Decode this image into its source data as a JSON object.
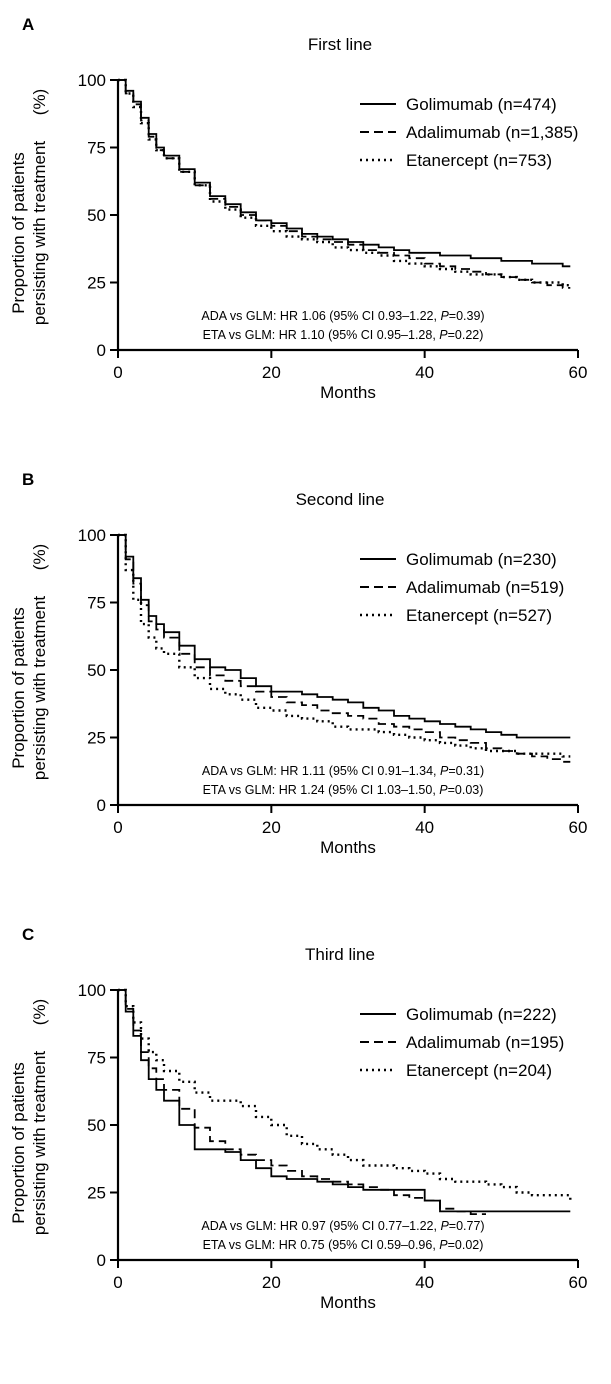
{
  "chart_data": [
    {
      "type": "line",
      "panel_letter": "A",
      "title": "First line",
      "xlabel": "Months",
      "ylabel_line1": "Proportion of patients",
      "ylabel_line2": "persisting with treatment",
      "ylabel_unit": "(%)",
      "xlim": [
        0,
        60
      ],
      "ylim": [
        0,
        100
      ],
      "xticks": [
        0,
        20,
        40,
        60
      ],
      "yticks": [
        0,
        25,
        50,
        75,
        100
      ],
      "grid": false,
      "legend_position": "top-right",
      "annotation_1": {
        "prefix": "ADA vs GLM: HR 1.06 (95% CI 0.93–1.22, ",
        "p_label": "P",
        "suffix": "=0.39)"
      },
      "annotation_2": {
        "prefix": "ETA vs GLM: HR 1.10 (95% CI 0.95–1.28, ",
        "p_label": "P",
        "suffix": "=0.22)"
      },
      "series": [
        {
          "name": "Golimumab (n=474)",
          "style": "solid",
          "x": [
            0,
            1,
            2,
            3,
            4,
            5,
            6,
            8,
            10,
            12,
            14,
            16,
            18,
            20,
            22,
            24,
            26,
            28,
            30,
            32,
            34,
            36,
            38,
            40,
            42,
            44,
            46,
            48,
            50,
            52,
            54,
            56,
            58,
            59
          ],
          "y": [
            100,
            96,
            92,
            86,
            80,
            75,
            72,
            67,
            62,
            57,
            54,
            51,
            48,
            47,
            45,
            43,
            42,
            41,
            40,
            39,
            38,
            37,
            36,
            36,
            35,
            35,
            34,
            34,
            33,
            33,
            32,
            32,
            31,
            31
          ]
        },
        {
          "name": "Adalimumab (n=1,385)",
          "style": "dashed",
          "x": [
            0,
            1,
            2,
            3,
            4,
            5,
            6,
            8,
            10,
            12,
            14,
            16,
            18,
            20,
            22,
            24,
            26,
            28,
            30,
            32,
            34,
            36,
            38,
            40,
            42,
            44,
            46,
            48,
            50,
            52,
            54,
            56,
            58,
            59
          ],
          "y": [
            100,
            95,
            91,
            85,
            79,
            74,
            71,
            66,
            61,
            56,
            53,
            50,
            48,
            46,
            44,
            42,
            41,
            40,
            39,
            37,
            36,
            35,
            34,
            32,
            31,
            30,
            29,
            28,
            27,
            26,
            25,
            24,
            23,
            23
          ]
        },
        {
          "name": "Etanercept (n=753)",
          "style": "dotted",
          "x": [
            0,
            1,
            2,
            3,
            4,
            5,
            6,
            8,
            10,
            12,
            14,
            16,
            18,
            20,
            22,
            24,
            26,
            28,
            30,
            32,
            34,
            36,
            38,
            40,
            42,
            44,
            46,
            48,
            50,
            52,
            54,
            56,
            58,
            59
          ],
          "y": [
            100,
            95,
            90,
            84,
            78,
            74,
            71,
            66,
            61,
            55,
            52,
            49,
            46,
            44,
            42,
            41,
            40,
            38,
            37,
            36,
            35,
            33,
            32,
            31,
            30,
            29,
            28,
            28,
            27,
            26,
            25,
            25,
            24,
            24
          ]
        }
      ]
    },
    {
      "type": "line",
      "panel_letter": "B",
      "title": "Second line",
      "xlabel": "Months",
      "ylabel_line1": "Proportion of patients",
      "ylabel_line2": "persisting with treatment",
      "ylabel_unit": "(%)",
      "xlim": [
        0,
        60
      ],
      "ylim": [
        0,
        100
      ],
      "xticks": [
        0,
        20,
        40,
        60
      ],
      "yticks": [
        0,
        25,
        50,
        75,
        100
      ],
      "grid": false,
      "legend_position": "top-right",
      "annotation_1": {
        "prefix": "ADA vs GLM: HR 1.11 (95% CI 0.91–1.34, ",
        "p_label": "P",
        "suffix": "=0.31)"
      },
      "annotation_2": {
        "prefix": "ETA vs GLM: HR 1.24 (95% CI 1.03–1.50, ",
        "p_label": "P",
        "suffix": "=0.03)"
      },
      "series": [
        {
          "name": "Golimumab (n=230)",
          "style": "solid",
          "x": [
            0,
            1,
            2,
            3,
            4,
            5,
            6,
            8,
            10,
            12,
            14,
            16,
            18,
            20,
            22,
            24,
            26,
            28,
            30,
            32,
            34,
            36,
            38,
            40,
            42,
            44,
            46,
            48,
            50,
            52,
            54,
            56,
            58,
            59
          ],
          "y": [
            100,
            92,
            84,
            76,
            70,
            67,
            64,
            59,
            54,
            51,
            50,
            47,
            44,
            42,
            42,
            41,
            40,
            39,
            38,
            36,
            35,
            33,
            32,
            31,
            30,
            29,
            28,
            27,
            26,
            25,
            25,
            25,
            25,
            25
          ]
        },
        {
          "name": "Adalimumab (n=519)",
          "style": "dashed",
          "x": [
            0,
            1,
            2,
            3,
            4,
            5,
            6,
            8,
            10,
            12,
            14,
            16,
            18,
            20,
            22,
            24,
            26,
            28,
            30,
            32,
            34,
            36,
            38,
            40,
            42,
            44,
            46,
            48,
            50,
            52,
            54,
            56,
            58,
            59
          ],
          "y": [
            100,
            91,
            82,
            74,
            68,
            65,
            62,
            56,
            51,
            48,
            46,
            44,
            42,
            40,
            38,
            37,
            35,
            34,
            33,
            32,
            30,
            29,
            28,
            27,
            25,
            24,
            23,
            21,
            20,
            19,
            18,
            17,
            16,
            16
          ]
        },
        {
          "name": "Etanercept (n=527)",
          "style": "dotted",
          "x": [
            0,
            1,
            2,
            3,
            4,
            5,
            6,
            8,
            10,
            12,
            14,
            16,
            18,
            20,
            22,
            24,
            26,
            28,
            30,
            32,
            34,
            36,
            38,
            40,
            42,
            44,
            46,
            48,
            50,
            52,
            54,
            56,
            58,
            59
          ],
          "y": [
            100,
            87,
            76,
            67,
            62,
            58,
            56,
            51,
            47,
            43,
            41,
            39,
            36,
            35,
            33,
            32,
            31,
            29,
            28,
            28,
            27,
            26,
            25,
            24,
            23,
            22,
            21,
            20,
            20,
            19,
            19,
            19,
            18,
            18
          ]
        }
      ]
    },
    {
      "type": "line",
      "panel_letter": "C",
      "title": "Third line",
      "xlabel": "Months",
      "ylabel_line1": "Proportion of patients",
      "ylabel_line2": "persisting with treatment",
      "ylabel_unit": "(%)",
      "xlim": [
        0,
        60
      ],
      "ylim": [
        0,
        100
      ],
      "xticks": [
        0,
        20,
        40,
        60
      ],
      "yticks": [
        0,
        25,
        50,
        75,
        100
      ],
      "grid": false,
      "legend_position": "top-right",
      "annotation_1": {
        "prefix": "ADA vs GLM: HR 0.97 (95% CI 0.77–1.22, ",
        "p_label": "P",
        "suffix": "=0.77)"
      },
      "annotation_2": {
        "prefix": "ETA vs GLM: HR 0.75 (95% CI 0.59–0.96, ",
        "p_label": "P",
        "suffix": "=0.02)"
      },
      "series": [
        {
          "name": "Golimumab (n=222)",
          "style": "solid",
          "x": [
            0,
            1,
            2,
            3,
            4,
            5,
            6,
            8,
            10,
            12,
            14,
            16,
            18,
            20,
            22,
            24,
            26,
            28,
            30,
            32,
            34,
            36,
            38,
            40,
            42,
            44,
            46,
            48,
            50,
            52,
            54,
            56,
            58,
            59
          ],
          "y": [
            100,
            92,
            83,
            74,
            67,
            63,
            59,
            50,
            41,
            41,
            40,
            37,
            34,
            31,
            30,
            30,
            29,
            28,
            27,
            26,
            26,
            26,
            26,
            22,
            18,
            18,
            18,
            18,
            18,
            18,
            18,
            18,
            18,
            18
          ]
        },
        {
          "name": "Adalimumab (n=195)",
          "style": "dashed",
          "x": [
            0,
            1,
            2,
            3,
            4,
            5,
            6,
            8,
            10,
            12,
            14,
            16,
            18,
            20,
            22,
            24,
            26,
            28,
            30,
            32,
            34,
            36,
            38,
            40,
            42,
            44,
            46,
            48
          ],
          "y": [
            100,
            93,
            85,
            77,
            71,
            67,
            63,
            56,
            49,
            44,
            41,
            39,
            37,
            35,
            33,
            31,
            30,
            29,
            28,
            27,
            26,
            24,
            23,
            22,
            19,
            18,
            17,
            17
          ]
        },
        {
          "name": "Etanercept (n=204)",
          "style": "dotted",
          "x": [
            0,
            1,
            2,
            3,
            4,
            5,
            6,
            8,
            10,
            12,
            14,
            16,
            18,
            20,
            22,
            24,
            26,
            28,
            30,
            32,
            34,
            36,
            38,
            40,
            42,
            44,
            46,
            48,
            50,
            52,
            54,
            56,
            58,
            59
          ],
          "y": [
            100,
            94,
            88,
            82,
            77,
            74,
            70,
            66,
            62,
            59,
            59,
            57,
            53,
            50,
            46,
            43,
            41,
            39,
            37,
            35,
            35,
            34,
            33,
            32,
            30,
            29,
            29,
            28,
            27,
            25,
            24,
            24,
            24,
            21
          ]
        }
      ]
    }
  ]
}
